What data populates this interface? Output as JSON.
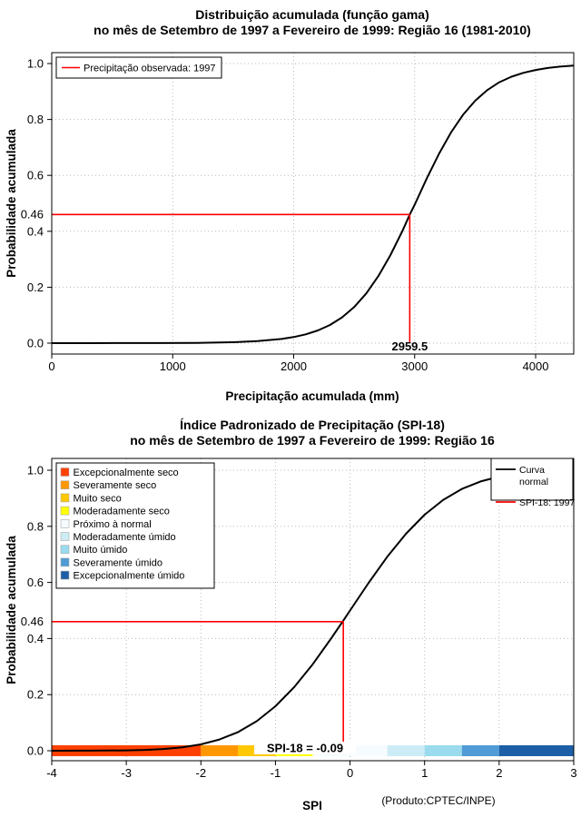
{
  "figure": {
    "background": "#ffffff",
    "accent_red": "#ff0000",
    "curve_black": "#000000"
  },
  "chart_data": [
    {
      "type": "line",
      "title": "Distribuição acumulada (função gama)",
      "subtitle": "no mês de Setembro de 1997 a Fevereiro de 1999: Região 16 (1981-2010)",
      "xlabel": "Precipitação acumulada (mm)",
      "ylabel": "Probabilidade acumulada",
      "xlim": [
        0,
        4315
      ],
      "ylim": [
        0,
        1
      ],
      "xticks": [
        0,
        1000,
        2000,
        3000,
        4000
      ],
      "yticks": [
        "0.0",
        "0.2",
        "0.4",
        "0.6",
        "0.8",
        "1.0"
      ],
      "grid": true,
      "legend_position": "top-left",
      "series": [
        {
          "color": "#000000",
          "points": [
            [
              0,
              0.0
            ],
            [
              300,
              0.0001
            ],
            [
              600,
              0.0002
            ],
            [
              900,
              0.0004
            ],
            [
              1200,
              0.0011
            ],
            [
              1500,
              0.0034
            ],
            [
              1700,
              0.007
            ],
            [
              1900,
              0.0148
            ],
            [
              2000,
              0.0218
            ],
            [
              2100,
              0.0316
            ],
            [
              2200,
              0.0455
            ],
            [
              2300,
              0.065
            ],
            [
              2400,
              0.0921
            ],
            [
              2500,
              0.129
            ],
            [
              2600,
              0.178
            ],
            [
              2700,
              0.24
            ],
            [
              2800,
              0.315
            ],
            [
              2900,
              0.402
            ],
            [
              2959.5,
              0.46
            ],
            [
              3000,
              0.495
            ],
            [
              3100,
              0.589
            ],
            [
              3200,
              0.676
            ],
            [
              3300,
              0.753
            ],
            [
              3400,
              0.817
            ],
            [
              3500,
              0.867
            ],
            [
              3600,
              0.905
            ],
            [
              3700,
              0.933
            ],
            [
              3800,
              0.953
            ],
            [
              3900,
              0.967
            ],
            [
              4000,
              0.977
            ],
            [
              4100,
              0.984
            ],
            [
              4200,
              0.989
            ],
            [
              4315,
              0.993
            ]
          ]
        }
      ],
      "reference": {
        "color": "#ff0000",
        "x": 2959.5,
        "y": 0.46,
        "x_label": "2959.5",
        "y_label": "0.46"
      },
      "legend": {
        "items": [
          {
            "label": "Precipitação observada: 1997",
            "color": "#ff0000"
          }
        ]
      }
    },
    {
      "type": "line",
      "title": "Índice Padronizado de Precipitação (SPI-18)",
      "subtitle": "no mês de Setembro de 1997 a Fevereiro de 1999: Região 16",
      "xlabel": "SPI",
      "ylabel": "Probabilidade acumulada",
      "xlim": [
        -4,
        3
      ],
      "ylim": [
        0,
        1
      ],
      "xticks": [
        -4,
        -3,
        -2,
        -1,
        0,
        1,
        2,
        3
      ],
      "yticks": [
        "0.0",
        "0.2",
        "0.4",
        "0.6",
        "0.8",
        "1.0"
      ],
      "grid": true,
      "series": [
        {
          "name": "Curva normal",
          "color": "#000000",
          "points": [
            [
              -4,
              0.0001
            ],
            [
              -3.5,
              0.0002
            ],
            [
              -3,
              0.0013
            ],
            [
              -2.75,
              0.003
            ],
            [
              -2.5,
              0.0062
            ],
            [
              -2.25,
              0.0122
            ],
            [
              -2,
              0.0228
            ],
            [
              -1.75,
              0.0401
            ],
            [
              -1.5,
              0.0668
            ],
            [
              -1.25,
              0.1056
            ],
            [
              -1,
              0.1587
            ],
            [
              -0.75,
              0.2266
            ],
            [
              -0.5,
              0.3085
            ],
            [
              -0.25,
              0.4013
            ],
            [
              -0.09,
              0.4641
            ],
            [
              0,
              0.5
            ],
            [
              0.25,
              0.5987
            ],
            [
              0.5,
              0.6915
            ],
            [
              0.75,
              0.7734
            ],
            [
              1,
              0.8413
            ],
            [
              1.25,
              0.8944
            ],
            [
              1.5,
              0.9332
            ],
            [
              1.75,
              0.9599
            ],
            [
              2,
              0.9772
            ],
            [
              2.25,
              0.9878
            ],
            [
              2.5,
              0.9938
            ],
            [
              2.75,
              0.997
            ],
            [
              3,
              0.9987
            ]
          ]
        }
      ],
      "reference": {
        "color": "#ff0000",
        "x": -0.09,
        "y": 0.46,
        "y_label": "0.46"
      },
      "annotation": "SPI-18 = -0.09",
      "line_legend": {
        "position": "top-right",
        "items": [
          {
            "label": "Curva normal",
            "label_lines": [
              "Curva",
              "normal"
            ],
            "color": "#000000"
          },
          {
            "label": "SPI-18: 1997",
            "label_lines": [
              "SPI-18: 1997"
            ],
            "color": "#ff0000"
          }
        ]
      },
      "category_legend": [
        {
          "label": "Excepcionalmente seco",
          "color": "#ff4000"
        },
        {
          "label": "Severamente seco",
          "color": "#ff9800"
        },
        {
          "label": "Muito seco",
          "color": "#ffc800"
        },
        {
          "label": "Moderadamente seco",
          "color": "#ffff00"
        },
        {
          "label": "Próximo à normal",
          "color": "#f5fbfe"
        },
        {
          "label": "Moderadamente úmido",
          "color": "#cdedf6"
        },
        {
          "label": "Muito úmido",
          "color": "#9adbee"
        },
        {
          "label": "Severamente úmido",
          "color": "#4f9bd5"
        },
        {
          "label": "Excepcionalmente úmido",
          "color": "#1d5fa6"
        }
      ],
      "colorbar": {
        "segments": [
          {
            "from": -4,
            "to": -2,
            "color": "#ff4000"
          },
          {
            "from": -2,
            "to": -1.5,
            "color": "#ff9800"
          },
          {
            "from": -1.5,
            "to": -1,
            "color": "#ffc800"
          },
          {
            "from": -1,
            "to": -0.5,
            "color": "#ffff00"
          },
          {
            "from": -0.5,
            "to": 0.5,
            "color": "#f5fbfe"
          },
          {
            "from": 0.5,
            "to": 1,
            "color": "#cdedf6"
          },
          {
            "from": 1,
            "to": 1.5,
            "color": "#9adbee"
          },
          {
            "from": 1.5,
            "to": 2,
            "color": "#4f9bd5"
          },
          {
            "from": 2,
            "to": 3,
            "color": "#1d5fa6"
          }
        ]
      },
      "credit": "(Produto:CPTEC/INPE)"
    }
  ]
}
